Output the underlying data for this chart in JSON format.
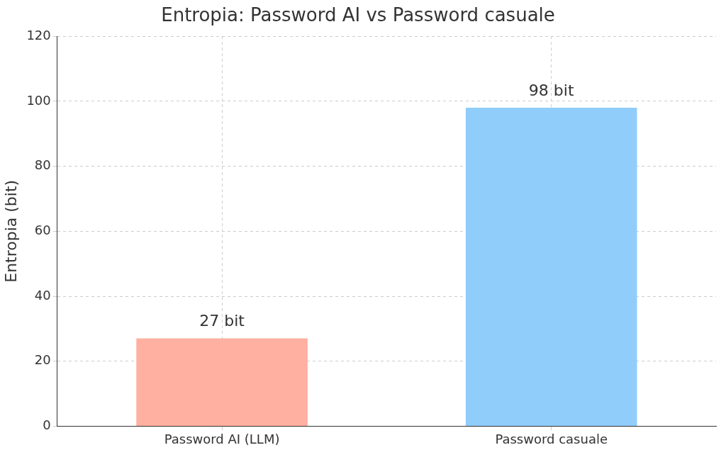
{
  "chart_data": {
    "type": "bar",
    "title": "Entropia: Password AI vs Password casuale",
    "ylabel": "Entropia (bit)",
    "categories": [
      "Password AI (LLM)",
      "Password casuale"
    ],
    "values": [
      27,
      98
    ],
    "colors": [
      "#ffb0a0",
      "#90cdfa"
    ],
    "value_labels": [
      "27 bit",
      "98 bit"
    ],
    "ylim": [
      0,
      120
    ],
    "yticks": [
      0,
      20,
      40,
      60,
      80,
      100,
      120
    ],
    "grid": true
  }
}
